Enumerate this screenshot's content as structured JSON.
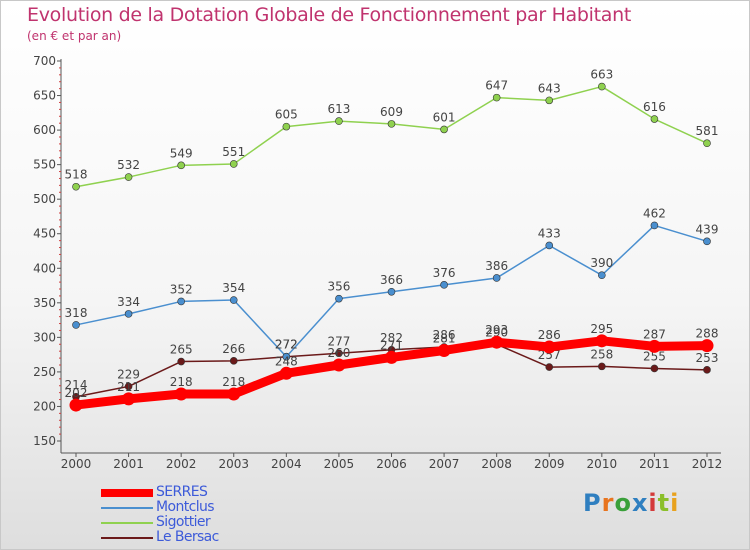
{
  "title": "Evolution de la Dotation Globale de Fonctionnement par Habitant",
  "subtitle": "(en € et par an)",
  "logo": {
    "text": "Proxiti",
    "colors": [
      "#2f7fc0",
      "#e8741e",
      "#3aa03a",
      "#2f7fc0",
      "#d43a3a",
      "#8bbf2a",
      "#e8a21e"
    ]
  },
  "chart_data": {
    "type": "line",
    "x": [
      2000,
      2001,
      2002,
      2003,
      2004,
      2005,
      2006,
      2007,
      2008,
      2009,
      2010,
      2011,
      2012
    ],
    "ylim": [
      150,
      700
    ],
    "yticks": [
      150,
      200,
      250,
      300,
      350,
      400,
      450,
      500,
      550,
      600,
      650,
      700
    ],
    "grid": false,
    "legend_position": "bottom-left",
    "series": [
      {
        "name": "Le Bersac",
        "color": "#6b1a1a",
        "values": [
          214,
          229,
          265,
          266,
          272,
          277,
          282,
          286,
          290,
          257,
          258,
          255,
          253
        ]
      },
      {
        "name": "Montclus",
        "color": "#4a8fcf",
        "values": [
          318,
          334,
          352,
          354,
          272,
          356,
          366,
          376,
          386,
          433,
          390,
          462,
          439
        ]
      },
      {
        "name": "Sigottier",
        "color": "#8fd14f",
        "values": [
          518,
          532,
          549,
          551,
          605,
          613,
          609,
          601,
          647,
          643,
          663,
          616,
          581
        ]
      },
      {
        "name": "SERRES",
        "color": "#ff0000",
        "values": [
          202,
          211,
          218,
          218,
          248,
          260,
          271,
          281,
          293,
          286,
          295,
          287,
          288
        ]
      }
    ],
    "legend": [
      "SERRES",
      "Montclus",
      "Sigottier",
      "Le Bersac"
    ]
  }
}
